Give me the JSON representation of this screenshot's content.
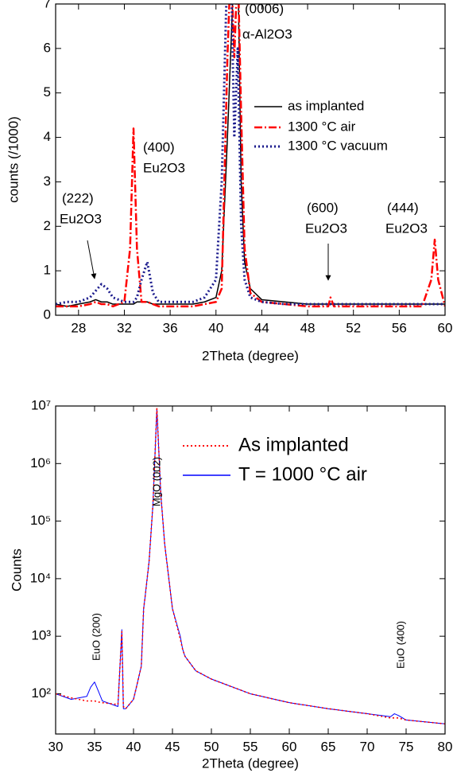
{
  "chart_data": [
    {
      "type": "line",
      "x_label": "2Theta (degree)",
      "y_label": "counts (/1000)",
      "xlim": [
        26,
        60
      ],
      "xticks": [
        28,
        32,
        36,
        40,
        44,
        48,
        52,
        56,
        60
      ],
      "ylim": [
        0,
        7
      ],
      "yticks": [
        0,
        1,
        2,
        3,
        4,
        5,
        6,
        7
      ],
      "log_y": false,
      "x": [
        26,
        27,
        28,
        29,
        29.5,
        30,
        30.5,
        31,
        32,
        32.5,
        32.8,
        33.1,
        33.5,
        34,
        34.5,
        35,
        36,
        38,
        39,
        40,
        40.5,
        41,
        41.3,
        41.6,
        41.9,
        42.2,
        42.5,
        43,
        44,
        46,
        48,
        49.8,
        50,
        50.3,
        52,
        54,
        56,
        58,
        58.8,
        59.1,
        59.4,
        60
      ],
      "series": [
        {
          "name": "as implanted",
          "color": "#000000",
          "line_style": "solid",
          "values": [
            0.25,
            0.2,
            0.25,
            0.3,
            0.35,
            0.3,
            0.3,
            0.25,
            0.25,
            0.25,
            0.25,
            0.3,
            0.3,
            0.3,
            0.25,
            0.25,
            0.25,
            0.25,
            0.3,
            0.4,
            1.0,
            4.0,
            6,
            8,
            8,
            3,
            1.2,
            0.6,
            0.35,
            0.3,
            0.25,
            0.25,
            0.25,
            0.25,
            0.25,
            0.25,
            0.25,
            0.25,
            0.25,
            0.25,
            0.25,
            0.25
          ]
        },
        {
          "name": "1300 °C air",
          "color": "#ff0000",
          "line_style": "dashdot",
          "values": [
            0.2,
            0.2,
            0.2,
            0.25,
            0.3,
            0.25,
            0.25,
            0.2,
            0.3,
            1.5,
            4.2,
            1.5,
            0.3,
            0.3,
            0.25,
            0.2,
            0.2,
            0.2,
            0.25,
            0.3,
            0.6,
            5.8,
            8,
            5.8,
            8,
            4.5,
            1.5,
            0.5,
            0.3,
            0.25,
            0.2,
            0.2,
            0.4,
            0.2,
            0.2,
            0.2,
            0.2,
            0.2,
            0.8,
            1.7,
            0.8,
            0.2
          ]
        },
        {
          "name": "1300 °C vacuum",
          "color": "#1a1a8c",
          "line_style": "dotted",
          "values": [
            0.25,
            0.3,
            0.3,
            0.4,
            0.55,
            0.7,
            0.6,
            0.4,
            0.3,
            0.3,
            0.3,
            0.4,
            0.8,
            1.2,
            0.5,
            0.3,
            0.3,
            0.3,
            0.4,
            0.8,
            3,
            8,
            8,
            4,
            6,
            2,
            0.8,
            0.4,
            0.3,
            0.25,
            0.25,
            0.25,
            0.25,
            0.25,
            0.25,
            0.25,
            0.25,
            0.25,
            0.25,
            0.25,
            0.25,
            0.25
          ]
        }
      ],
      "annotations": [
        "(0006)",
        "α-Al2O3",
        "(400)",
        "Eu2O3",
        "(222)",
        "Eu2O3",
        "(600)",
        "Eu2O3",
        "(444)",
        "Eu2O3"
      ]
    },
    {
      "type": "line",
      "x_label": "2Theta (degree)",
      "y_label": "Counts",
      "xlim": [
        30,
        80
      ],
      "xticks": [
        30,
        35,
        40,
        45,
        50,
        55,
        60,
        65,
        70,
        75,
        80
      ],
      "ylim": [
        20,
        10000000
      ],
      "yticks": [
        {
          "value": 100,
          "label": "10²"
        },
        {
          "value": 1000,
          "label": "10³"
        },
        {
          "value": 10000,
          "label": "10⁴"
        },
        {
          "value": 100000,
          "label": "10⁵"
        },
        {
          "value": 1000000,
          "label": "10⁶"
        },
        {
          "value": 10000000,
          "label": "10⁷"
        }
      ],
      "log_y": true,
      "x": [
        30,
        32,
        34,
        34.5,
        35,
        35.5,
        36,
        38,
        38.5,
        38.7,
        39,
        40,
        41,
        41.3,
        41.5,
        42,
        42.5,
        43,
        43.5,
        44,
        45,
        46,
        46.3,
        46.6,
        48,
        50,
        55,
        60,
        65,
        70,
        73,
        73.5,
        74,
        75,
        80
      ],
      "series": [
        {
          "name": "T = 1000 °C air",
          "color": "#0000ff",
          "line_style": "solid",
          "values": [
            100,
            80,
            90,
            130,
            160,
            110,
            75,
            60,
            1300,
            55,
            55,
            80,
            300,
            3000,
            5000,
            20000,
            200000,
            9000000,
            300000,
            40000,
            3000,
            1000,
            600,
            450,
            250,
            180,
            100,
            70,
            55,
            45,
            40,
            45,
            42,
            35,
            30
          ]
        },
        {
          "name": "As implanted",
          "color": "#ff0000",
          "line_style": "dotted",
          "values": [
            100,
            85,
            75,
            75,
            75,
            72,
            70,
            65,
            1200,
            60,
            55,
            80,
            300,
            3000,
            5000,
            20000,
            200000,
            9000000,
            300000,
            40000,
            3000,
            900,
            600,
            450,
            250,
            180,
            100,
            70,
            55,
            45,
            38,
            38,
            38,
            35,
            30
          ]
        }
      ],
      "annotations": [
        "MgO (002)",
        "EuO (200)",
        "EuO (400)"
      ]
    }
  ]
}
